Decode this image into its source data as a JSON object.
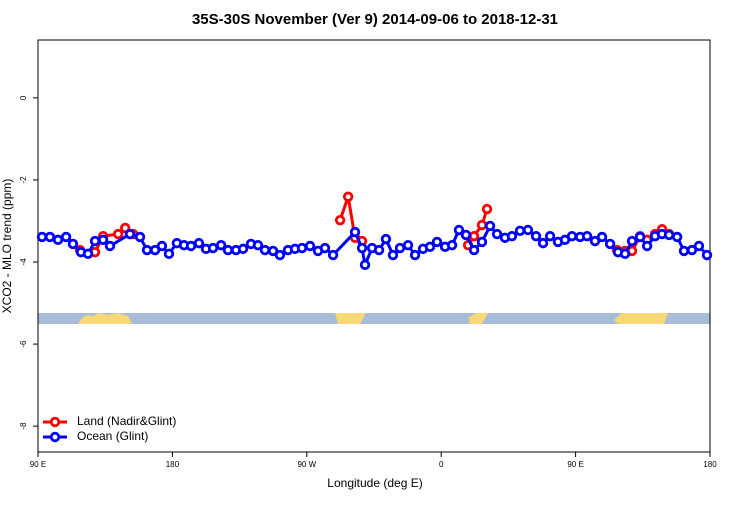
{
  "chart_data": {
    "type": "line",
    "title": "35S-30S November (Ver 9)   2014-09-06 to 2018-12-31",
    "x_label": "Longitude (deg E)",
    "y_label": "XCO2 - MLO trend (ppm)",
    "xlim": [
      90,
      540
    ],
    "ylim": [
      -8.63,
      1.41
    ],
    "xticks": [
      {
        "value": 90,
        "label": "90 E"
      },
      180,
      {
        "value": 270,
        "label": "90 W"
      },
      {
        "value": 360,
        "label": "0"
      },
      {
        "value": 450,
        "label": "90 E"
      },
      {
        "value": 540,
        "label": "180"
      }
    ],
    "yticks": [
      0,
      -2,
      -4,
      -6,
      -8
    ],
    "legend": "bottom left",
    "series": [
      {
        "name": "Land (Nadir&Glint)",
        "color": "#ff0000",
        "x": [
          118.1,
          128.2,
          133.6,
          143.7,
          148.4,
          153.7,
          null,
          292.3,
          297.7,
          302.3,
          307,
          null,
          378,
          382,
          387.3,
          390.7,
          null,
          477.7,
          483.1,
          487.8,
          493.2,
          497.9,
          503.2,
          507.9,
          512.6
        ],
        "values": [
          -3.71,
          -3.76,
          -3.37,
          -3.32,
          -3.17,
          -3.32,
          null,
          -2.98,
          -2.41,
          -3.41,
          -3.49,
          null,
          -3.59,
          -3.37,
          -3.1,
          -2.71,
          null,
          -3.71,
          -3.73,
          -3.73,
          -3.37,
          -3.46,
          -3.32,
          -3.2,
          -3.32
        ]
      },
      {
        "name": "Ocean (Glint)",
        "color": "#0000ff",
        "x": [
          92.7,
          98,
          103.4,
          108.8,
          113.4,
          118.8,
          123.5,
          128.2,
          133.6,
          138.2,
          151.6,
          158.3,
          163,
          168.4,
          173,
          177.7,
          183,
          187.8,
          192.5,
          197.8,
          202.5,
          207.2,
          212.6,
          217.2,
          222.6,
          227.3,
          232.6,
          237.3,
          242,
          247.4,
          252,
          257.4,
          262.1,
          266.8,
          272.2,
          277.5,
          282.2,
          287.6,
          302.3,
          307,
          309,
          313.7,
          318.4,
          323,
          327.7,
          332.4,
          337.8,
          342.5,
          347.8,
          352.5,
          357.2,
          362.6,
          367.3,
          371.9,
          376.6,
          382,
          387.3,
          392.7,
          397.4,
          402.7,
          407.4,
          412.8,
          418.1,
          423.5,
          428.2,
          432.9,
          438.2,
          442.9,
          447.6,
          453,
          457.7,
          463,
          467.7,
          473.1,
          478.4,
          483.1,
          487.8,
          493.2,
          497.9,
          503.2,
          507.9,
          512.6,
          518,
          522.6,
          527.9,
          532.6,
          538
        ],
        "values": [
          -3.39,
          -3.39,
          -3.46,
          -3.39,
          -3.56,
          -3.76,
          -3.8,
          -3.49,
          -3.46,
          -3.61,
          -3.32,
          -3.39,
          -3.71,
          -3.71,
          -3.61,
          -3.8,
          -3.54,
          -3.59,
          -3.61,
          -3.54,
          -3.68,
          -3.66,
          -3.59,
          -3.71,
          -3.71,
          -3.68,
          -3.56,
          -3.59,
          -3.71,
          -3.73,
          -3.83,
          -3.71,
          -3.68,
          -3.66,
          -3.61,
          -3.73,
          -3.66,
          -3.83,
          -3.27,
          -3.66,
          -4.07,
          -3.66,
          -3.71,
          -3.44,
          -3.83,
          -3.66,
          -3.59,
          -3.83,
          -3.68,
          -3.63,
          -3.51,
          -3.63,
          -3.59,
          -3.22,
          -3.34,
          -3.71,
          -3.51,
          -3.12,
          -3.32,
          -3.41,
          -3.37,
          -3.24,
          -3.22,
          -3.37,
          -3.54,
          -3.37,
          -3.51,
          -3.46,
          -3.37,
          -3.39,
          -3.37,
          -3.49,
          -3.39,
          -3.56,
          -3.76,
          -3.8,
          -3.49,
          -3.39,
          -3.61,
          -3.37,
          -3.32,
          -3.34,
          -3.39,
          -3.73,
          -3.71,
          -3.61,
          -3.83
        ]
      }
    ]
  }
}
